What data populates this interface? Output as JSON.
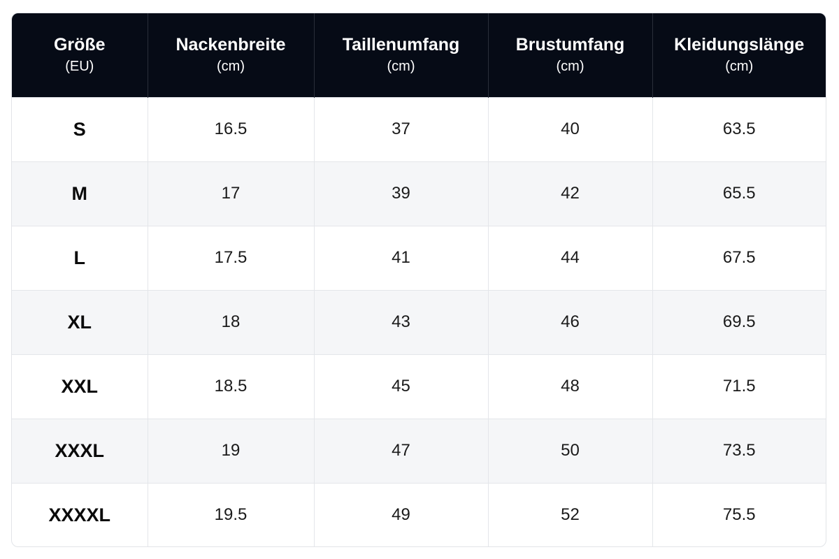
{
  "table": {
    "headers": [
      {
        "label": "Größe",
        "unit": "(EU)"
      },
      {
        "label": "Nackenbreite",
        "unit": "(cm)"
      },
      {
        "label": "Taillenumfang",
        "unit": "(cm)"
      },
      {
        "label": "Brustumfang",
        "unit": "(cm)"
      },
      {
        "label": "Kleidungslänge",
        "unit": "(cm)"
      }
    ],
    "rows": [
      [
        "S",
        "16.5",
        "37",
        "40",
        "63.5"
      ],
      [
        "M",
        "17",
        "39",
        "42",
        "65.5"
      ],
      [
        "L",
        "17.5",
        "41",
        "44",
        "67.5"
      ],
      [
        "XL",
        "18",
        "43",
        "46",
        "69.5"
      ],
      [
        "XXL",
        "18.5",
        "45",
        "48",
        "71.5"
      ],
      [
        "XXXL",
        "19",
        "47",
        "50",
        "73.5"
      ],
      [
        "XXXXL",
        "19.5",
        "49",
        "52",
        "75.5"
      ]
    ]
  },
  "colors": {
    "header_bg": "#060b16",
    "header_text": "#ffffff",
    "stripe_bg": "#f5f6f8",
    "border": "#e4e6ea"
  }
}
